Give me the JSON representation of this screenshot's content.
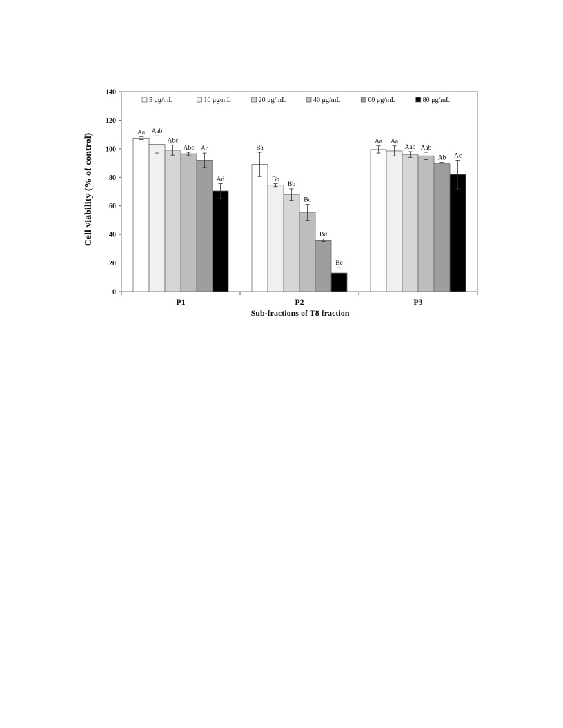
{
  "chart_data": {
    "type": "bar",
    "title": "",
    "xlabel": "Sub-fractions of T8 fraction",
    "ylabel": "Cell viability (% of control)",
    "ylim": [
      0,
      140
    ],
    "yticks": [
      0,
      20,
      40,
      60,
      80,
      100,
      120,
      140
    ],
    "categories": [
      "P1",
      "P2",
      "P3"
    ],
    "grid": false,
    "legend_position": "top",
    "series": [
      {
        "name": "5 μg/mL",
        "color": "#ffffff",
        "values": [
          107.5,
          89,
          99.5
        ],
        "errors": [
          1,
          8.5,
          2.5
        ],
        "labels": [
          "Aa",
          "Ba",
          "Aa"
        ]
      },
      {
        "name": "10 μg/mL",
        "color": "#f0f0f0",
        "values": [
          103,
          74.5,
          98.5
        ],
        "errors": [
          6,
          1,
          3.5
        ],
        "labels": [
          "Aab",
          "Bb",
          "Aa"
        ]
      },
      {
        "name": "20 μg/mL",
        "color": "#d6d6d6",
        "values": [
          99,
          68,
          96
        ],
        "errors": [
          3.5,
          4,
          2
        ],
        "labels": [
          "Abc",
          "Bb",
          "Aab"
        ]
      },
      {
        "name": "40 μg/mL",
        "color": "#bdbdbd",
        "values": [
          96.5,
          55.5,
          95
        ],
        "errors": [
          1,
          5.5,
          2.5
        ],
        "labels": [
          "Abc",
          "Bc",
          "Aab"
        ]
      },
      {
        "name": "60 μg/mL",
        "color": "#9e9e9e",
        "values": [
          92,
          36,
          89.5
        ],
        "errors": [
          5,
          1,
          1
        ],
        "labels": [
          "Ac",
          "Bd",
          "Ab"
        ]
      },
      {
        "name": "80 μg/mL",
        "color": "#000000",
        "values": [
          70.5,
          13,
          82
        ],
        "errors": [
          5,
          4,
          10
        ],
        "labels": [
          "Ad",
          "Be",
          "Ac"
        ]
      }
    ]
  }
}
